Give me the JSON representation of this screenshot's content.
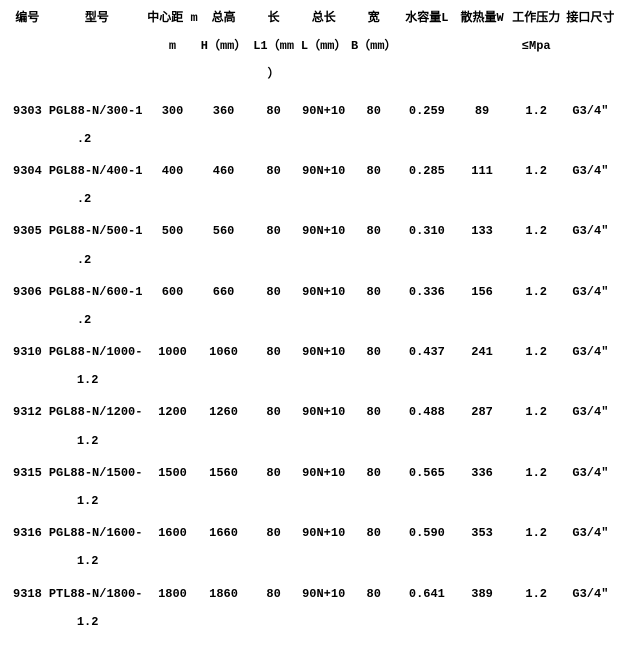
{
  "headers": {
    "id": {
      "l1": "编号",
      "l2": "",
      "l3": ""
    },
    "model": {
      "l1": "型号",
      "l2": "",
      "l3": ""
    },
    "cd": {
      "l1": "中心距 m",
      "l2": "m",
      "l3": ""
    },
    "h": {
      "l1": "总高",
      "l2": "H（mm）",
      "l3": ""
    },
    "l1c": {
      "l1": "长",
      "l2": "L1（mm",
      "l3": "）"
    },
    "l": {
      "l1": "总长",
      "l2": "L（mm）",
      "l3": ""
    },
    "b": {
      "l1": "宽",
      "l2": "B（mm）",
      "l3": ""
    },
    "wc": {
      "l1": "水容量L",
      "l2": "",
      "l3": ""
    },
    "hd": {
      "l1": "散热量W",
      "l2": "",
      "l3": ""
    },
    "wp": {
      "l1": "工作压力",
      "l2": "≤Mpa",
      "l3": ""
    },
    "port": {
      "l1": "接口尺寸",
      "l2": "",
      "l3": ""
    }
  },
  "rows": [
    {
      "id": "9303",
      "model_l1": "PGL88-N/300-1",
      "model_l2": ".2",
      "cd": "300",
      "h": "360",
      "l1": "80",
      "l": "90N+10",
      "b": "80",
      "wc": "0.259",
      "hd": "89",
      "wp": "1.2",
      "port": "G3/4″"
    },
    {
      "id": "9304",
      "model_l1": "PGL88-N/400-1",
      "model_l2": ".2",
      "cd": "400",
      "h": "460",
      "l1": "80",
      "l": "90N+10",
      "b": "80",
      "wc": "0.285",
      "hd": "111",
      "wp": "1.2",
      "port": "G3/4″"
    },
    {
      "id": "9305",
      "model_l1": "PGL88-N/500-1",
      "model_l2": ".2",
      "cd": "500",
      "h": "560",
      "l1": "80",
      "l": "90N+10",
      "b": "80",
      "wc": "0.310",
      "hd": "133",
      "wp": "1.2",
      "port": "G3/4″"
    },
    {
      "id": "9306",
      "model_l1": "PGL88-N/600-1",
      "model_l2": ".2",
      "cd": "600",
      "h": "660",
      "l1": "80",
      "l": "90N+10",
      "b": "80",
      "wc": "0.336",
      "hd": "156",
      "wp": "1.2",
      "port": "G3/4″"
    },
    {
      "id": "9310",
      "model_l1": "PGL88-N/1000-",
      "model_l2": "1.2",
      "cd": "1000",
      "h": "1060",
      "l1": "80",
      "l": "90N+10",
      "b": "80",
      "wc": "0.437",
      "hd": "241",
      "wp": "1.2",
      "port": "G3/4″"
    },
    {
      "id": "9312",
      "model_l1": "PGL88-N/1200-",
      "model_l2": "1.2",
      "cd": "1200",
      "h": "1260",
      "l1": "80",
      "l": "90N+10",
      "b": "80",
      "wc": "0.488",
      "hd": "287",
      "wp": "1.2",
      "port": "G3/4″"
    },
    {
      "id": "9315",
      "model_l1": "PGL88-N/1500-",
      "model_l2": "1.2",
      "cd": "1500",
      "h": "1560",
      "l1": "80",
      "l": "90N+10",
      "b": "80",
      "wc": "0.565",
      "hd": "336",
      "wp": "1.2",
      "port": "G3/4″"
    },
    {
      "id": "9316",
      "model_l1": "PGL88-N/1600-",
      "model_l2": "1.2",
      "cd": "1600",
      "h": "1660",
      "l1": "80",
      "l": "90N+10",
      "b": "80",
      "wc": "0.590",
      "hd": "353",
      "wp": "1.2",
      "port": "G3/4″"
    },
    {
      "id": "9318",
      "model_l1": "PTL88-N/1800-",
      "model_l2": "1.2",
      "cd": "1800",
      "h": "1860",
      "l1": "80",
      "l": "90N+10",
      "b": "80",
      "wc": "0.641",
      "hd": "389",
      "wp": "1.2",
      "port": "G3/4″"
    }
  ]
}
